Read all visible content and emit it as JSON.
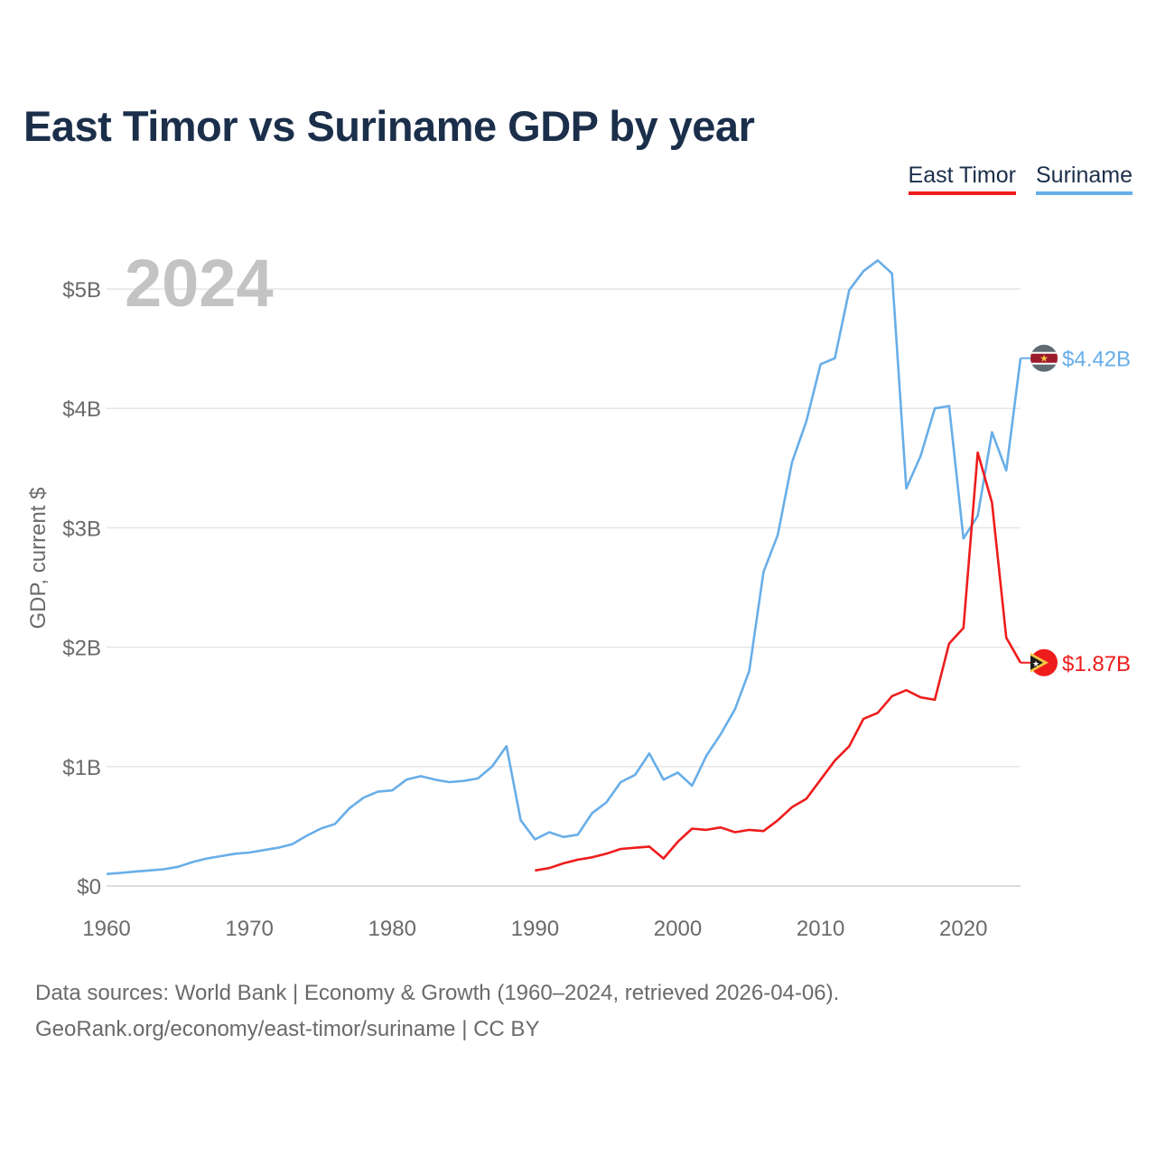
{
  "title": "East Timor vs Suriname GDP by year",
  "legend": {
    "east_timor": "East Timor",
    "suriname": "Suriname"
  },
  "year_watermark": "2024",
  "source_line1": "Data sources: World Bank | Economy & Growth (1960–2024, retrieved 2026-04-06).",
  "source_line2": "GeoRank.org/economy/east-timor/suriname | CC BY",
  "colors": {
    "east_timor": "#ee1c1c",
    "suriname": "#68aee8",
    "title": "#1b2f4b",
    "axis_text": "#6a6a6a",
    "grid": "#e6e6e6"
  },
  "chart_data": {
    "type": "line",
    "title": "East Timor vs Suriname GDP by year",
    "xlabel": "",
    "ylabel": "GDP, current $",
    "xlim": [
      1960,
      2024
    ],
    "ylim": [
      0,
      5000000000
    ],
    "x_ticks": [
      1960,
      1970,
      1980,
      1990,
      2000,
      2010,
      2020
    ],
    "y_ticks": [
      {
        "value": 0,
        "label": "$0"
      },
      {
        "value": 1000000000,
        "label": "$1B"
      },
      {
        "value": 2000000000,
        "label": "$2B"
      },
      {
        "value": 3000000000,
        "label": "$3B"
      },
      {
        "value": 4000000000,
        "label": "$4B"
      },
      {
        "value": 5000000000,
        "label": "$5B"
      }
    ],
    "series": [
      {
        "name": "Suriname",
        "color": "#68aee8",
        "end_label": "$4.42B",
        "flag": "suriname-flag-icon",
        "x": [
          1960,
          1961,
          1962,
          1963,
          1964,
          1965,
          1966,
          1967,
          1968,
          1969,
          1970,
          1971,
          1972,
          1973,
          1974,
          1975,
          1976,
          1977,
          1978,
          1979,
          1980,
          1981,
          1982,
          1983,
          1984,
          1985,
          1986,
          1987,
          1988,
          1989,
          1990,
          1991,
          1992,
          1993,
          1994,
          1995,
          1996,
          1997,
          1998,
          1999,
          2000,
          2001,
          2002,
          2003,
          2004,
          2005,
          2006,
          2007,
          2008,
          2009,
          2010,
          2011,
          2012,
          2013,
          2014,
          2015,
          2016,
          2017,
          2018,
          2019,
          2020,
          2021,
          2022,
          2023,
          2024
        ],
        "values": [
          0.1,
          0.11,
          0.12,
          0.13,
          0.14,
          0.16,
          0.2,
          0.23,
          0.25,
          0.27,
          0.28,
          0.3,
          0.32,
          0.35,
          0.42,
          0.48,
          0.52,
          0.65,
          0.74,
          0.79,
          0.8,
          0.89,
          0.92,
          0.89,
          0.87,
          0.88,
          0.9,
          1.0,
          1.17,
          0.55,
          0.39,
          0.45,
          0.41,
          0.43,
          0.61,
          0.7,
          0.87,
          0.93,
          1.11,
          0.89,
          0.95,
          0.84,
          1.09,
          1.27,
          1.48,
          1.8,
          2.63,
          2.94,
          3.55,
          3.89,
          4.37,
          4.42,
          4.99,
          5.15,
          5.24,
          5.13,
          3.33,
          3.6,
          4.0,
          4.02,
          2.91,
          3.1,
          3.8,
          3.48,
          4.42
        ]
      },
      {
        "name": "East Timor",
        "color": "#ee1c1c",
        "end_label": "$1.87B",
        "flag": "east-timor-flag-icon",
        "x": [
          1990,
          1991,
          1992,
          1993,
          1994,
          1995,
          1996,
          1997,
          1998,
          1999,
          2000,
          2001,
          2002,
          2003,
          2004,
          2005,
          2006,
          2007,
          2008,
          2009,
          2010,
          2011,
          2012,
          2013,
          2014,
          2015,
          2016,
          2017,
          2018,
          2019,
          2020,
          2021,
          2022,
          2023,
          2024
        ],
        "values": [
          0.13,
          0.15,
          0.19,
          0.22,
          0.24,
          0.27,
          0.31,
          0.32,
          0.33,
          0.23,
          0.37,
          0.48,
          0.47,
          0.49,
          0.45,
          0.47,
          0.46,
          0.55,
          0.66,
          0.73,
          0.89,
          1.05,
          1.17,
          1.4,
          1.45,
          1.59,
          1.64,
          1.58,
          1.56,
          2.03,
          2.16,
          3.63,
          3.21,
          2.08,
          1.87
        ]
      }
    ],
    "value_unit": "billions USD"
  }
}
